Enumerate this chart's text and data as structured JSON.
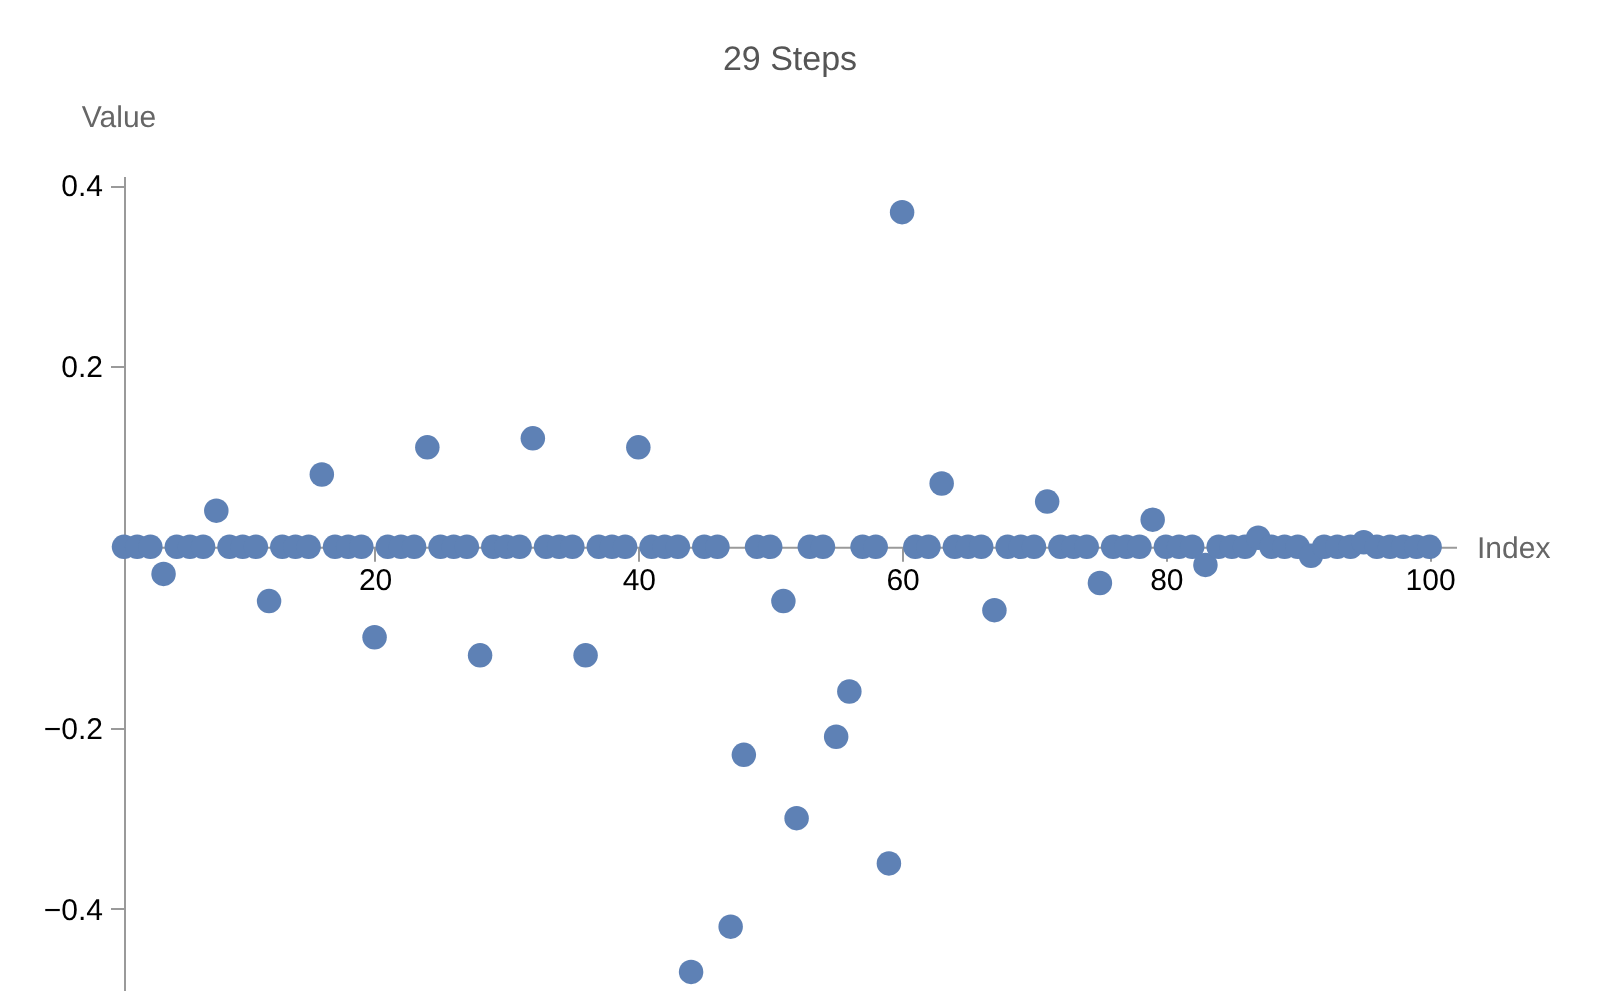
{
  "chart_data": {
    "type": "scatter",
    "title": "29 Steps",
    "xlabel": "Index",
    "ylabel": "Value",
    "x": [
      1,
      2,
      3,
      4,
      5,
      6,
      7,
      8,
      9,
      10,
      11,
      12,
      13,
      14,
      15,
      16,
      17,
      18,
      19,
      20,
      21,
      22,
      23,
      24,
      25,
      26,
      27,
      28,
      29,
      30,
      31,
      32,
      33,
      34,
      35,
      36,
      37,
      38,
      39,
      40,
      41,
      42,
      43,
      44,
      45,
      46,
      47,
      48,
      49,
      50,
      51,
      52,
      53,
      54,
      55,
      56,
      57,
      58,
      59,
      60,
      61,
      62,
      63,
      64,
      65,
      66,
      67,
      68,
      69,
      70,
      71,
      72,
      73,
      74,
      75,
      76,
      77,
      78,
      79,
      80,
      81,
      82,
      83,
      84,
      85,
      86,
      87,
      88,
      89,
      90,
      91,
      92,
      93,
      94,
      95,
      96,
      97,
      98,
      99,
      100
    ],
    "series": [
      {
        "color": "#5e81b5",
        "values": [
          0,
          0,
          0,
          -0.03,
          0,
          0,
          0,
          0.04,
          0,
          0,
          0,
          -0.06,
          0,
          0,
          0,
          0.08,
          0,
          0,
          0,
          -0.1,
          0,
          0,
          0,
          0.11,
          0,
          0,
          0,
          -0.12,
          0,
          0,
          0,
          0.12,
          0,
          0,
          0,
          -0.12,
          0,
          0,
          0,
          0.11,
          0,
          0,
          0,
          -0.47,
          0,
          0,
          -0.42,
          -0.23,
          0,
          0,
          -0.06,
          -0.3,
          0,
          0,
          -0.21,
          -0.16,
          0,
          0,
          -0.35,
          0.37,
          0,
          0,
          0.07,
          0,
          0,
          0,
          -0.07,
          0,
          0,
          0,
          0.05,
          0,
          0,
          0,
          -0.04,
          0,
          0,
          0,
          0.03,
          0,
          0,
          0,
          -0.02,
          0,
          0,
          0,
          0.01,
          0,
          0,
          0,
          -0.01,
          0,
          0,
          0,
          0.005,
          0,
          0,
          0,
          0,
          0
        ]
      }
    ],
    "xlim": [
      1,
      102
    ],
    "ylim": [
      -0.49,
      0.41
    ],
    "xticks": [
      20,
      40,
      60,
      80,
      100
    ],
    "yticks": [
      -0.4,
      -0.2,
      0.2,
      0.4
    ],
    "marker": "circle",
    "grid": false,
    "legend": false
  }
}
